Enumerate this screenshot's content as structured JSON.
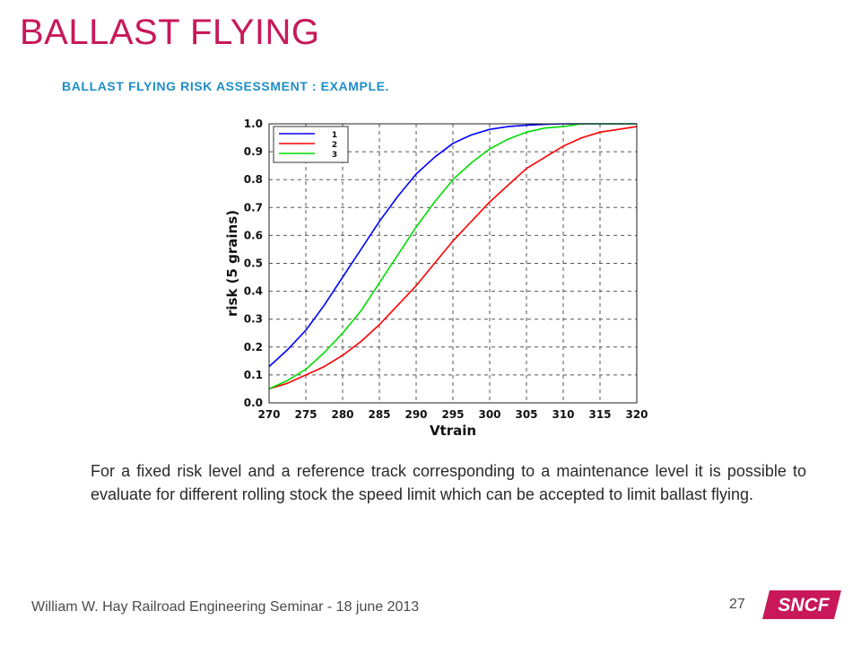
{
  "slide": {
    "title": "BALLAST FLYING",
    "subtitle": "BALLAST FLYING RISK ASSESSMENT : EXAMPLE.",
    "body": "For a fixed risk level and a reference track corresponding to a maintenance level it is possible to evaluate for different rolling stock the speed limit which can be accepted to limit ballast flying.",
    "footer": "William W. Hay Railroad Engineering Seminar - 18 june 2013",
    "page_number": "27",
    "logo_text": "SNCF"
  },
  "colors": {
    "title": "#c8185a",
    "subtitle": "#1f8ec7",
    "logo": "#c8185a",
    "series": [
      "#0000ff",
      "#ff0000",
      "#00dd00"
    ]
  },
  "chart_data": {
    "type": "line",
    "xlabel": "Vtrain",
    "ylabel": "risk (5 grains)",
    "xlim": [
      270,
      320
    ],
    "ylim": [
      0,
      1
    ],
    "xticks": [
      270,
      275,
      280,
      285,
      290,
      295,
      300,
      305,
      310,
      315,
      320
    ],
    "yticks": [
      0.0,
      0.1,
      0.2,
      0.3,
      0.4,
      0.5,
      0.6,
      0.7,
      0.8,
      0.9,
      1.0
    ],
    "xtick_labels": [
      "270",
      "275",
      "280",
      "285",
      "290",
      "295",
      "300",
      "305",
      "310",
      "315",
      "320"
    ],
    "ytick_labels": [
      "0.0",
      "0.1",
      "0.2",
      "0.3",
      "0.4",
      "0.5",
      "0.6",
      "0.7",
      "0.8",
      "0.9",
      "1.0"
    ],
    "grid": true,
    "legend": "top-left",
    "series": [
      {
        "name": "1",
        "color": "#0000ff",
        "x": [
          270,
          272.5,
          275,
          277.5,
          280,
          282.5,
          285,
          287.5,
          290,
          292.5,
          295,
          297.5,
          300,
          302.5,
          305,
          307.5,
          310,
          312.5,
          315,
          317.5,
          320
        ],
        "y": [
          0.13,
          0.19,
          0.26,
          0.35,
          0.45,
          0.55,
          0.65,
          0.74,
          0.82,
          0.88,
          0.93,
          0.96,
          0.98,
          0.99,
          0.995,
          0.998,
          1.0,
          1.0,
          1.0,
          1.0,
          1.0
        ]
      },
      {
        "name": "2",
        "color": "#ff0000",
        "x": [
          270,
          272.5,
          275,
          277.5,
          280,
          282.5,
          285,
          287.5,
          290,
          292.5,
          295,
          297.5,
          300,
          302.5,
          305,
          307.5,
          310,
          312.5,
          315,
          317.5,
          320
        ],
        "y": [
          0.05,
          0.07,
          0.1,
          0.13,
          0.17,
          0.22,
          0.28,
          0.35,
          0.42,
          0.5,
          0.58,
          0.65,
          0.72,
          0.78,
          0.84,
          0.88,
          0.92,
          0.95,
          0.97,
          0.98,
          0.99
        ]
      },
      {
        "name": "3",
        "color": "#00dd00",
        "x": [
          270,
          272.5,
          275,
          277.5,
          280,
          282.5,
          285,
          287.5,
          290,
          292.5,
          295,
          297.5,
          300,
          302.5,
          305,
          307.5,
          310,
          312.5,
          315,
          317.5,
          320
        ],
        "y": [
          0.05,
          0.08,
          0.12,
          0.18,
          0.25,
          0.33,
          0.43,
          0.53,
          0.63,
          0.72,
          0.8,
          0.86,
          0.91,
          0.945,
          0.97,
          0.985,
          0.99,
          1.0,
          1.0,
          1.0,
          1.0
        ]
      }
    ]
  }
}
